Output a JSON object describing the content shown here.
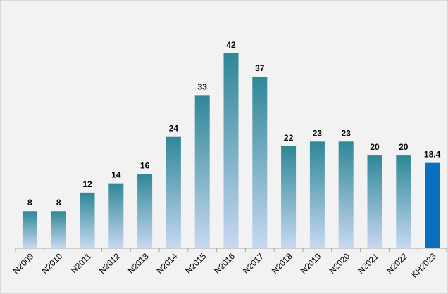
{
  "chart_data": {
    "type": "bar",
    "categories": [
      "N2009",
      "N2010",
      "N2011",
      "N2012",
      "N2013",
      "N2014",
      "N2015",
      "N2016",
      "N2017",
      "N2018",
      "N2019",
      "N2020",
      "N2021",
      "N2022",
      "KH2023"
    ],
    "values": [
      8,
      8,
      12,
      14,
      16,
      24,
      33,
      42,
      37,
      22,
      23,
      23,
      20,
      20,
      18.4
    ],
    "colors": [
      "#2e8797",
      "#2e8797",
      "#2e8797",
      "#2e8797",
      "#2e8797",
      "#2e8797",
      "#2e8797",
      "#2e8797",
      "#2e8797",
      "#2e8797",
      "#2e8797",
      "#2e8797",
      "#2e8797",
      "#2e8797",
      "#0a6fbf"
    ],
    "bottom_colors": [
      "#c8d8f2",
      "#c8d8f2",
      "#c8d8f2",
      "#c8d8f2",
      "#c8d8f2",
      "#c8d8f2",
      "#c8d8f2",
      "#c8d8f2",
      "#c8d8f2",
      "#c8d8f2",
      "#c8d8f2",
      "#c8d8f2",
      "#c8d8f2",
      "#c8d8f2",
      "#0a6fbf"
    ],
    "data_labels": true
  }
}
